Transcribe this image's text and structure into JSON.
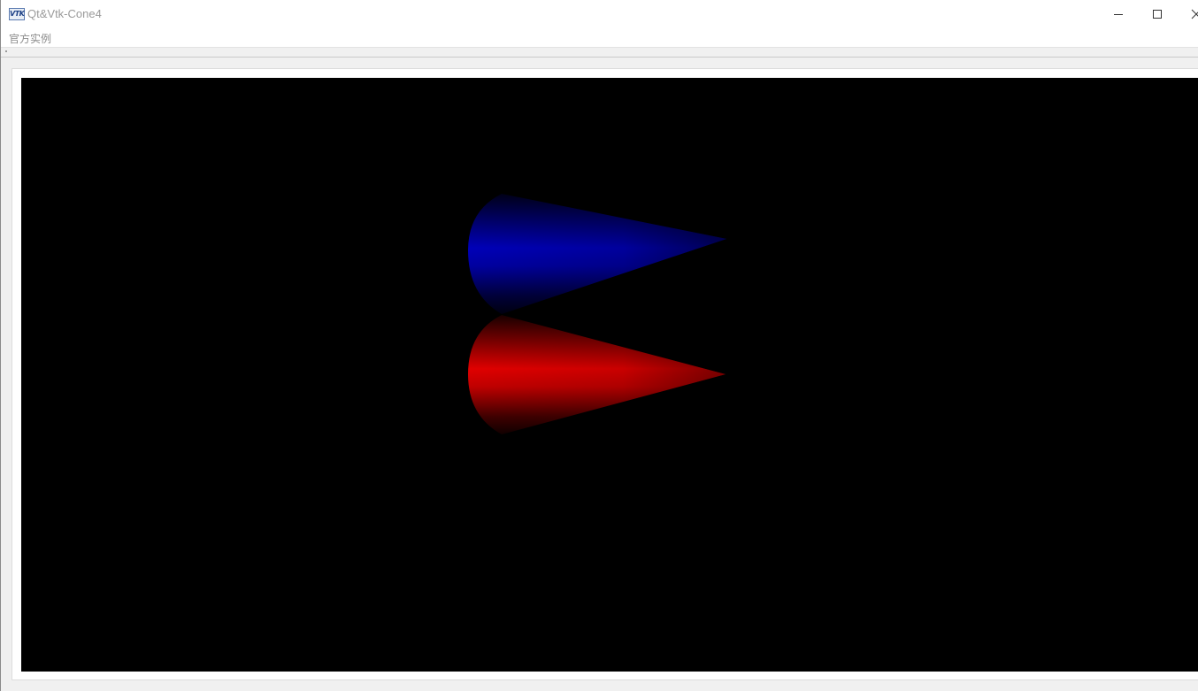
{
  "window": {
    "title": "Qt&Vtk-Cone4",
    "icon": "vtk-app-icon"
  },
  "title_buttons": {
    "minimize": "minimize-icon",
    "maximize": "maximize-icon",
    "close": "close-icon"
  },
  "menu": {
    "items": [
      {
        "label": "官方实例"
      }
    ]
  },
  "render_view": {
    "background": "#000000",
    "actors": [
      {
        "name": "blue-cone",
        "color": "#0000ff"
      },
      {
        "name": "red-cone",
        "color": "#ff0000"
      }
    ]
  }
}
